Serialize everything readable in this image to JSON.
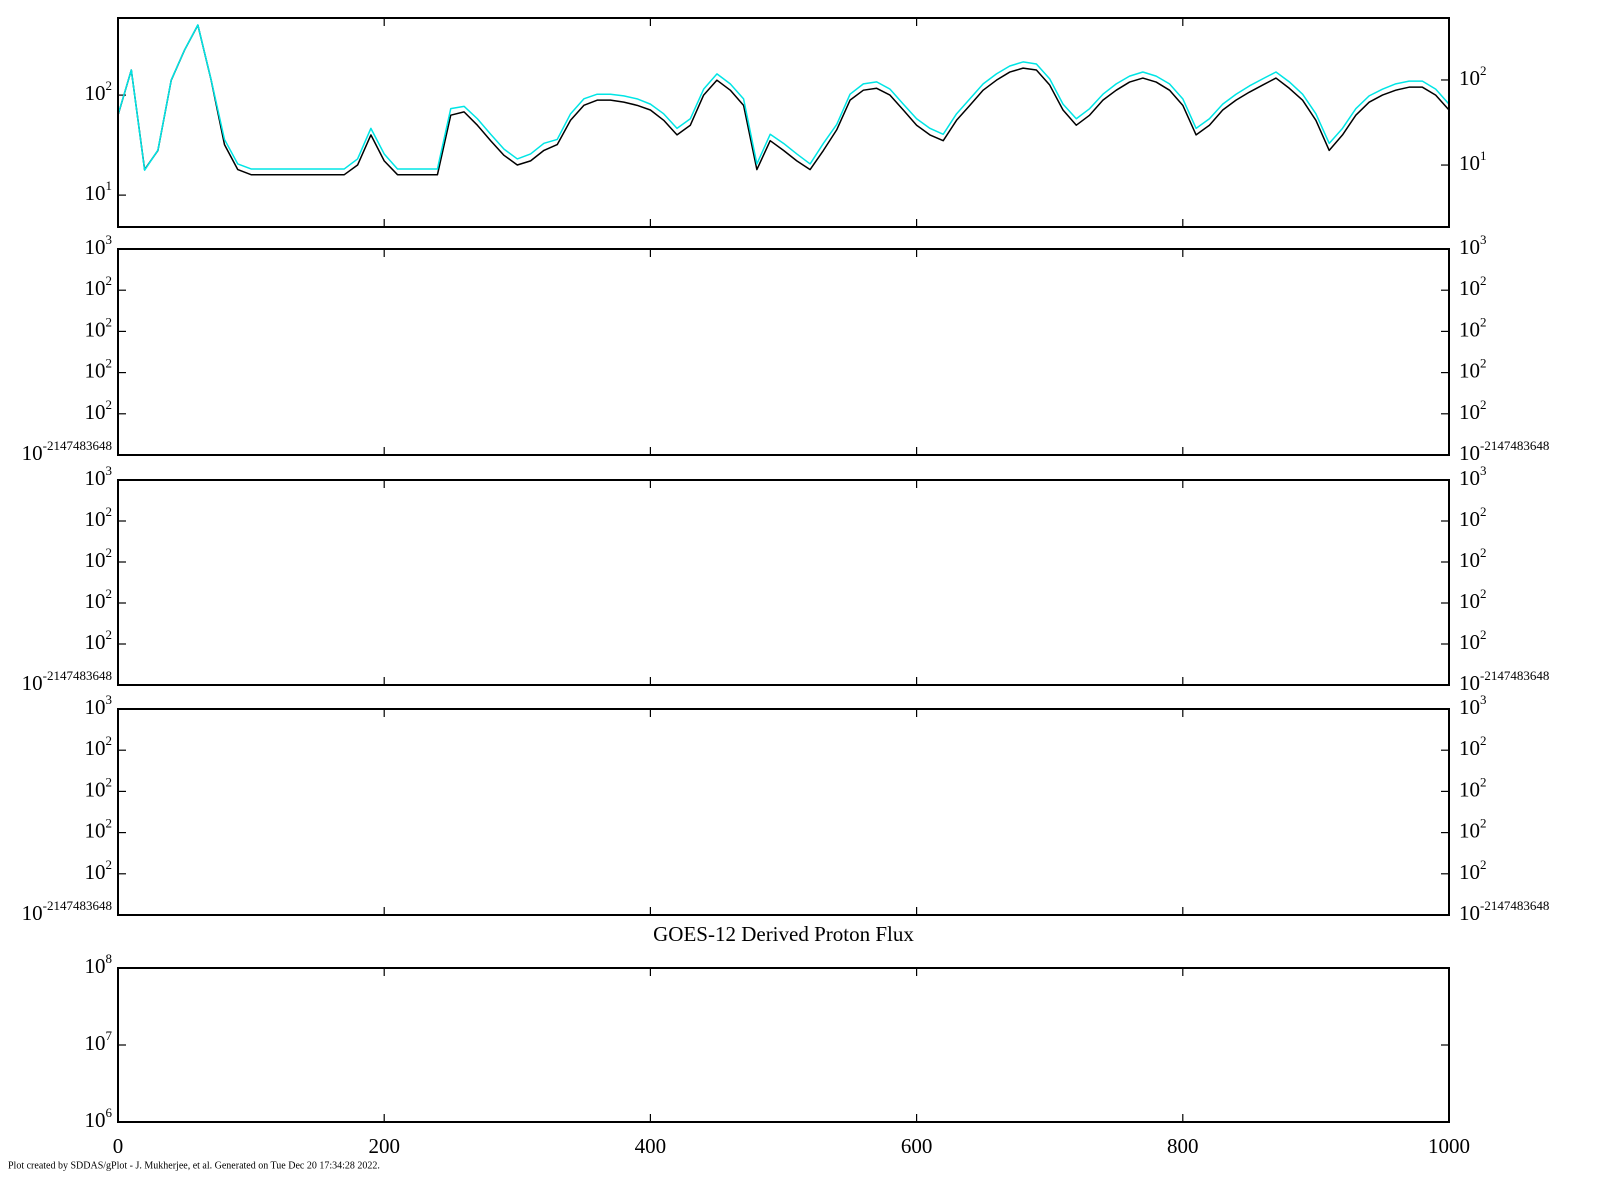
{
  "footer": "Plot created by SDDAS/gPlot - J. Mukherjee, et al.  Generated on Tue Dec 20 17:34:28 2022.",
  "chart_data": [
    {
      "type": "line",
      "ylog": true,
      "ylim": [
        4.8,
        590
      ],
      "yticks": [
        {
          "value": 10,
          "label": "10",
          "exponent": "1"
        },
        {
          "value": 100,
          "label": "10",
          "exponent": "2"
        }
      ],
      "y2lim": [
        1.87,
        535
      ],
      "y2ticks": [
        {
          "value": 10,
          "label": "10",
          "exponent": "1"
        },
        {
          "value": 100,
          "label": "10",
          "exponent": "2"
        }
      ],
      "x": [
        0,
        10,
        20,
        30,
        40,
        50,
        60,
        70,
        80,
        90,
        100,
        110,
        120,
        130,
        140,
        150,
        160,
        170,
        180,
        190,
        200,
        210,
        220,
        230,
        240,
        250,
        260,
        270,
        280,
        290,
        300,
        310,
        320,
        330,
        340,
        350,
        360,
        370,
        380,
        390,
        400,
        410,
        420,
        430,
        440,
        450,
        460,
        470,
        480,
        490,
        500,
        510,
        520,
        530,
        540,
        550,
        560,
        570,
        580,
        590,
        600,
        610,
        620,
        630,
        640,
        650,
        660,
        670,
        680,
        690,
        700,
        710,
        720,
        730,
        740,
        750,
        760,
        770,
        780,
        790,
        800,
        810,
        820,
        830,
        840,
        850,
        860,
        870,
        880,
        890,
        900,
        910,
        920,
        930,
        940,
        950,
        960,
        970,
        980,
        990,
        1000
      ],
      "series": [
        {
          "color": "#000000",
          "values": [
            63,
            178,
            18,
            28,
            141,
            282,
            501,
            141,
            32,
            18,
            16,
            16,
            16,
            16,
            16,
            16,
            16,
            16,
            20,
            40,
            22,
            16,
            16,
            16,
            16,
            63,
            68,
            50,
            35,
            25,
            20,
            22,
            28,
            32,
            56,
            79,
            89,
            89,
            85,
            79,
            71,
            56,
            40,
            50,
            100,
            141,
            112,
            79,
            18,
            35,
            28,
            22,
            18,
            28,
            45,
            89,
            112,
            117,
            100,
            71,
            50,
            40,
            35,
            56,
            79,
            112,
            141,
            170,
            186,
            178,
            126,
            71,
            50,
            63,
            89,
            112,
            135,
            148,
            135,
            112,
            79,
            40,
            50,
            71,
            89,
            107,
            126,
            148,
            117,
            89,
            56,
            28,
            40,
            63,
            85,
            100,
            112,
            120,
            120,
            100,
            71
          ]
        },
        {
          "color": "#00e5e5",
          "axis": "y2",
          "values": [
            39,
            131,
            8.7,
            15,
            100,
            225,
            444,
            100,
            20,
            10.3,
            9,
            9,
            9,
            9,
            9,
            9,
            9,
            9,
            11.8,
            27,
            13.5,
            9,
            9,
            9,
            9,
            46,
            49,
            35,
            23,
            15.4,
            11.8,
            13.5,
            18,
            20,
            40,
            60,
            68,
            68,
            65,
            60,
            52,
            40,
            27,
            35,
            78,
            118,
            90,
            60,
            10.3,
            23,
            18,
            13.5,
            10.3,
            18,
            30,
            68,
            90,
            95,
            78,
            52,
            35,
            27,
            23,
            40,
            60,
            90,
            118,
            146,
            163,
            154,
            103,
            52,
            35,
            46,
            68,
            90,
            111,
            124,
            111,
            90,
            60,
            27,
            35,
            52,
            68,
            85,
            103,
            124,
            95,
            68,
            40,
            18,
            27,
            46,
            65,
            78,
            90,
            97,
            97,
            78,
            52
          ]
        }
      ]
    },
    {
      "type": "line",
      "ylim": [
        0,
        1000
      ],
      "y_right_labels": true,
      "yticks": [
        {
          "value": 0,
          "label": "10",
          "exponent": "-2147483648"
        },
        {
          "value": 200,
          "label": "10",
          "exponent": "2"
        },
        {
          "value": 400,
          "label": "10",
          "exponent": "2"
        },
        {
          "value": 600,
          "label": "10",
          "exponent": "2"
        },
        {
          "value": 800,
          "label": "10",
          "exponent": "2"
        },
        {
          "value": 1000,
          "label": "10",
          "exponent": "3"
        }
      ]
    },
    {
      "type": "line",
      "ylim": [
        0,
        1000
      ],
      "y_right_labels": true,
      "yticks": [
        {
          "value": 0,
          "label": "10",
          "exponent": "-2147483648"
        },
        {
          "value": 200,
          "label": "10",
          "exponent": "2"
        },
        {
          "value": 400,
          "label": "10",
          "exponent": "2"
        },
        {
          "value": 600,
          "label": "10",
          "exponent": "2"
        },
        {
          "value": 800,
          "label": "10",
          "exponent": "2"
        },
        {
          "value": 1000,
          "label": "10",
          "exponent": "3"
        }
      ]
    },
    {
      "type": "line",
      "ylim": [
        0,
        1000
      ],
      "y_right_labels": true,
      "yticks": [
        {
          "value": 0,
          "label": "10",
          "exponent": "-2147483648"
        },
        {
          "value": 200,
          "label": "10",
          "exponent": "2"
        },
        {
          "value": 400,
          "label": "10",
          "exponent": "2"
        },
        {
          "value": 600,
          "label": "10",
          "exponent": "2"
        },
        {
          "value": 800,
          "label": "10",
          "exponent": "2"
        },
        {
          "value": 1000,
          "label": "10",
          "exponent": "3"
        }
      ]
    },
    {
      "type": "line",
      "title": "GOES-12 Derived Proton Flux",
      "ylog": true,
      "ylim": [
        1000000,
        100000000
      ],
      "yticks": [
        {
          "value": 1000000,
          "label": "10",
          "exponent": "6"
        },
        {
          "value": 10000000,
          "label": "10",
          "exponent": "7"
        },
        {
          "value": 100000000,
          "label": "10",
          "exponent": "8"
        }
      ],
      "xlim": [
        0,
        1000
      ],
      "xticks": [
        0,
        200,
        400,
        600,
        800,
        1000
      ]
    }
  ]
}
